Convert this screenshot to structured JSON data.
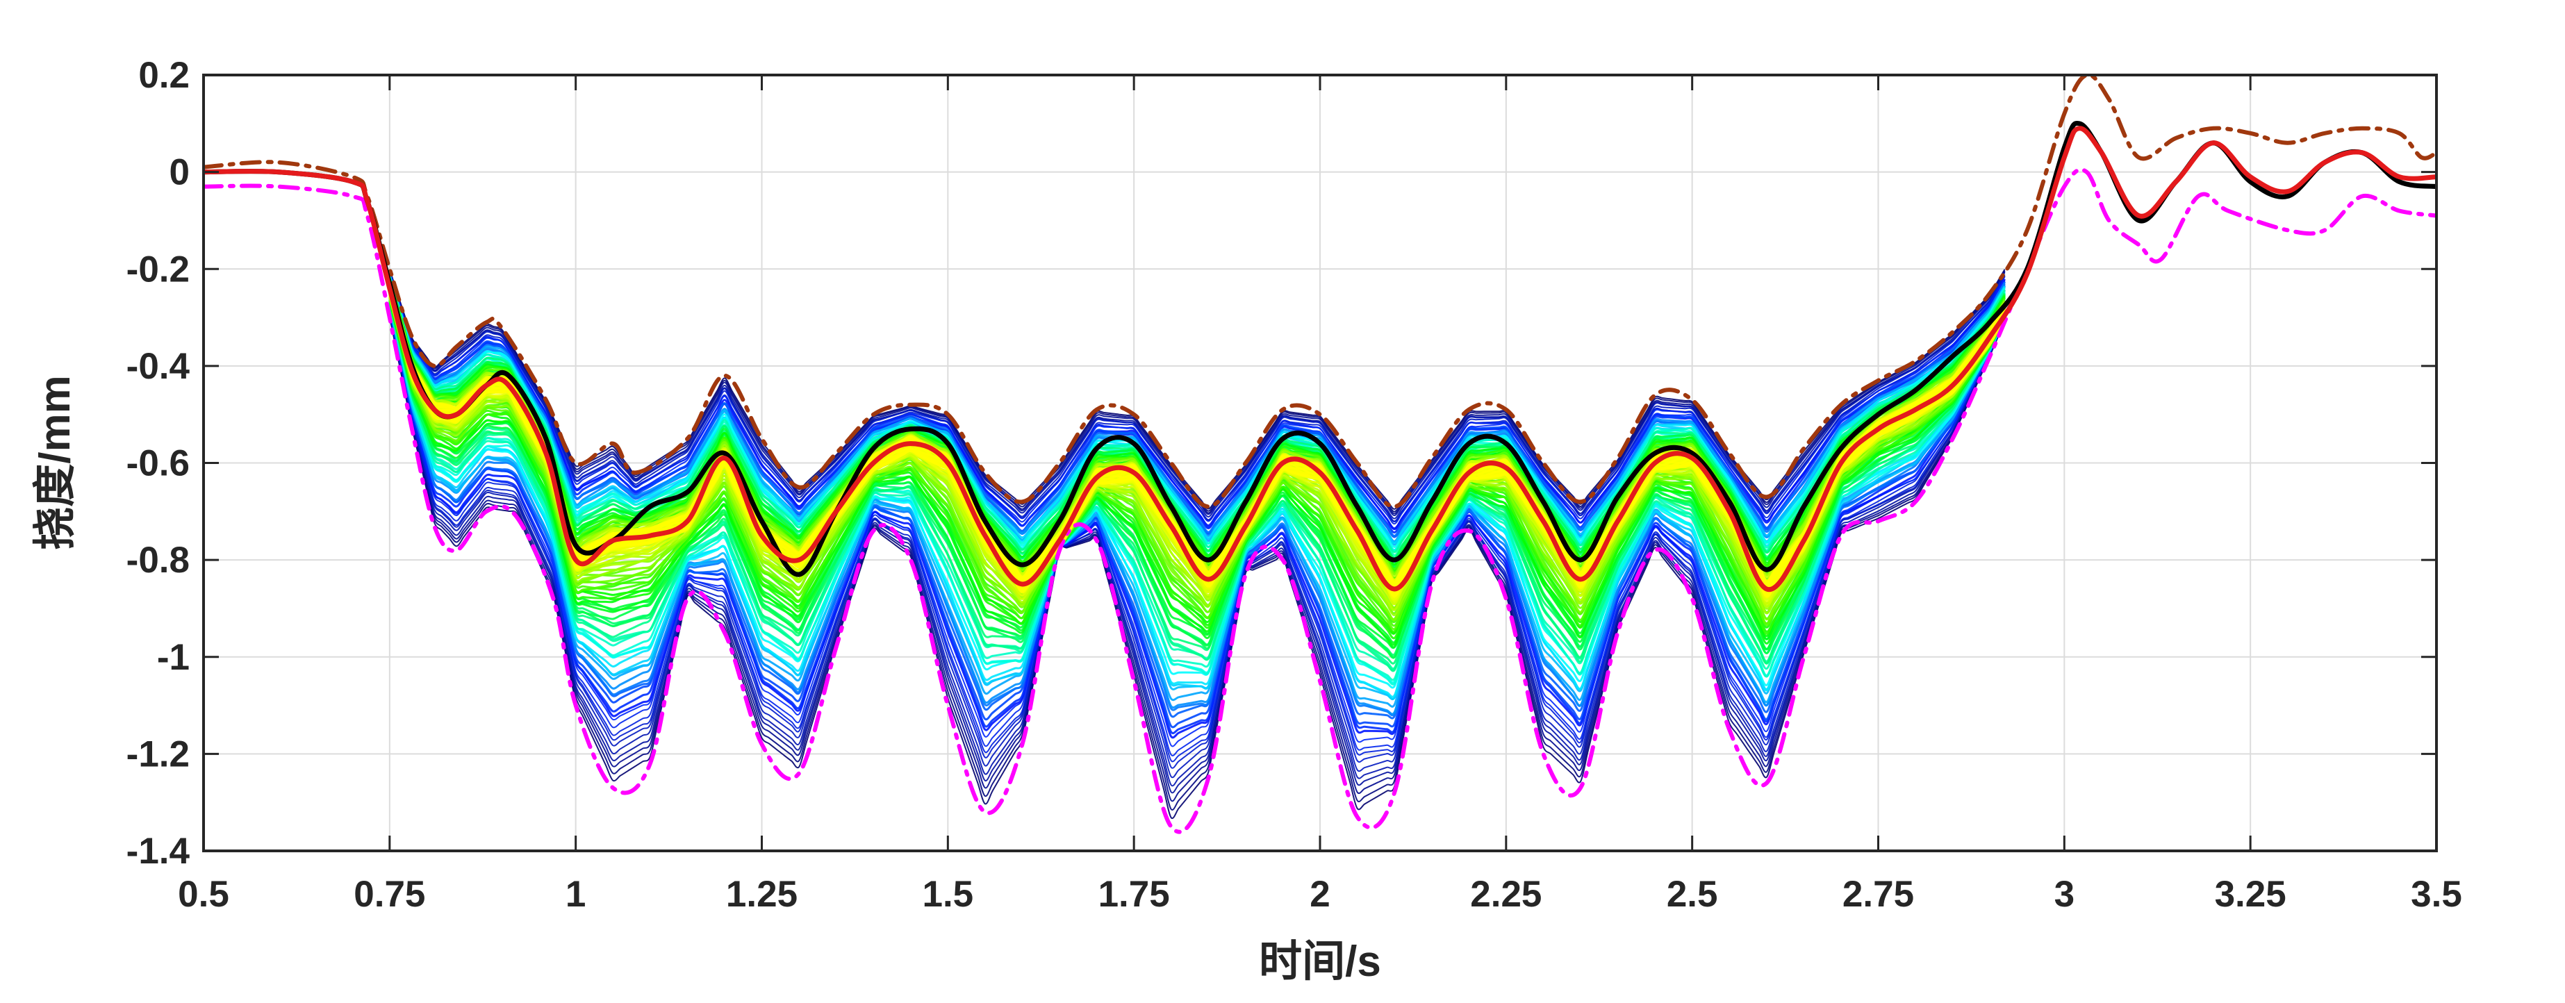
{
  "chart_data": {
    "type": "line",
    "title": "",
    "xlabel": "时间/s",
    "ylabel": "挠度/mm",
    "xlim": [
      0.5,
      3.5
    ],
    "ylim": [
      -1.4,
      0.2
    ],
    "xticks": [
      0.5,
      0.75,
      1,
      1.25,
      1.5,
      1.75,
      2,
      2.25,
      2.5,
      2.75,
      3,
      3.25,
      3.5
    ],
    "xtick_labels": [
      "0.5",
      "0.75",
      "1",
      "1.25",
      "1.5",
      "1.75",
      "2",
      "2.25",
      "2.5",
      "2.75",
      "3",
      "3.25",
      "3.5"
    ],
    "yticks": [
      -1.4,
      -1.2,
      -1,
      -0.8,
      -0.6,
      -0.4,
      -0.2,
      0,
      0.2
    ],
    "ytick_labels": [
      "-1.4",
      "-1.2",
      "-1",
      "-0.8",
      "-0.6",
      "-0.4",
      "-0.2",
      "0",
      "0.2"
    ],
    "grid": true,
    "legend": "none",
    "colors": {
      "black_series": "#000000",
      "red_series": "#e41a1c",
      "upper_envelope": "#a0380e",
      "lower_envelope": "#ff00ff",
      "band_dark": "#000080",
      "band_light": "#00ffff",
      "band_center": "#ffd700"
    },
    "ensemble": {
      "count": 150,
      "x_range": [
        0.75,
        2.92
      ]
    },
    "series": [
      {
        "style": "solid",
        "color": "#000000",
        "x": [
          0.5,
          0.6,
          0.7,
          0.72,
          0.75,
          0.78,
          0.81,
          0.84,
          0.88,
          0.91,
          0.96,
          1.0,
          1.05,
          1.1,
          1.15,
          1.2,
          1.25,
          1.3,
          1.35,
          1.4,
          1.45,
          1.5,
          1.55,
          1.6,
          1.65,
          1.7,
          1.75,
          1.8,
          1.85,
          1.9,
          1.95,
          2.0,
          2.05,
          2.1,
          2.15,
          2.2,
          2.25,
          2.3,
          2.35,
          2.4,
          2.45,
          2.5,
          2.55,
          2.6,
          2.65,
          2.7,
          2.75,
          2.8,
          2.85,
          2.9,
          2.95,
          3.0,
          3.02,
          3.05,
          3.1,
          3.15,
          3.2,
          3.25,
          3.3,
          3.35,
          3.4,
          3.45,
          3.5
        ],
        "y": [
          0.0,
          0.0,
          -0.02,
          -0.06,
          -0.23,
          -0.4,
          -0.49,
          -0.5,
          -0.44,
          -0.42,
          -0.55,
          -0.77,
          -0.76,
          -0.69,
          -0.66,
          -0.58,
          -0.72,
          -0.83,
          -0.7,
          -0.57,
          -0.53,
          -0.56,
          -0.72,
          -0.81,
          -0.72,
          -0.57,
          -0.56,
          -0.69,
          -0.8,
          -0.68,
          -0.55,
          -0.56,
          -0.69,
          -0.8,
          -0.68,
          -0.56,
          -0.56,
          -0.68,
          -0.8,
          -0.67,
          -0.58,
          -0.58,
          -0.68,
          -0.82,
          -0.69,
          -0.57,
          -0.5,
          -0.45,
          -0.38,
          -0.31,
          -0.2,
          0.05,
          0.1,
          0.04,
          -0.1,
          -0.02,
          0.06,
          -0.02,
          -0.05,
          0.02,
          0.04,
          -0.02,
          -0.03
        ]
      },
      {
        "style": "solid",
        "color": "#e41a1c",
        "x": [
          0.5,
          0.6,
          0.7,
          0.72,
          0.75,
          0.78,
          0.81,
          0.84,
          0.88,
          0.91,
          0.96,
          1.0,
          1.05,
          1.1,
          1.15,
          1.2,
          1.25,
          1.3,
          1.35,
          1.4,
          1.45,
          1.5,
          1.55,
          1.6,
          1.65,
          1.7,
          1.75,
          1.8,
          1.85,
          1.9,
          1.95,
          2.0,
          2.05,
          2.1,
          2.15,
          2.2,
          2.25,
          2.3,
          2.35,
          2.4,
          2.45,
          2.5,
          2.55,
          2.6,
          2.65,
          2.7,
          2.75,
          2.8,
          2.85,
          2.9,
          2.95,
          3.0,
          3.02,
          3.05,
          3.1,
          3.15,
          3.2,
          3.25,
          3.3,
          3.35,
          3.4,
          3.45,
          3.5
        ],
        "y": [
          0.0,
          0.0,
          -0.02,
          -0.06,
          -0.24,
          -0.41,
          -0.49,
          -0.5,
          -0.44,
          -0.44,
          -0.58,
          -0.8,
          -0.76,
          -0.75,
          -0.72,
          -0.59,
          -0.75,
          -0.8,
          -0.7,
          -0.6,
          -0.56,
          -0.6,
          -0.75,
          -0.85,
          -0.76,
          -0.63,
          -0.62,
          -0.73,
          -0.84,
          -0.73,
          -0.6,
          -0.62,
          -0.74,
          -0.86,
          -0.74,
          -0.62,
          -0.61,
          -0.72,
          -0.84,
          -0.72,
          -0.6,
          -0.59,
          -0.7,
          -0.86,
          -0.76,
          -0.6,
          -0.53,
          -0.49,
          -0.44,
          -0.34,
          -0.21,
          0.03,
          0.09,
          0.04,
          -0.09,
          -0.02,
          0.06,
          -0.01,
          -0.04,
          0.02,
          0.04,
          -0.01,
          -0.01
        ]
      },
      {
        "style": "dash-dot",
        "color": "#a0380e",
        "x": [
          0.5,
          0.6,
          0.7,
          0.72,
          0.75,
          0.78,
          0.81,
          0.84,
          0.88,
          0.9,
          0.96,
          1.0,
          1.05,
          1.08,
          1.15,
          1.2,
          1.25,
          1.3,
          1.35,
          1.4,
          1.45,
          1.5,
          1.55,
          1.6,
          1.65,
          1.7,
          1.75,
          1.8,
          1.85,
          1.9,
          1.95,
          2.0,
          2.05,
          2.1,
          2.15,
          2.2,
          2.25,
          2.3,
          2.35,
          2.4,
          2.45,
          2.5,
          2.55,
          2.6,
          2.65,
          2.7,
          2.75,
          2.8,
          2.85,
          2.9,
          2.95,
          3.0,
          3.03,
          3.06,
          3.1,
          3.15,
          3.2,
          3.25,
          3.3,
          3.35,
          3.4,
          3.45,
          3.48,
          3.5
        ],
        "y": [
          0.01,
          0.02,
          -0.01,
          -0.05,
          -0.2,
          -0.34,
          -0.4,
          -0.36,
          -0.31,
          -0.32,
          -0.47,
          -0.6,
          -0.56,
          -0.62,
          -0.55,
          -0.42,
          -0.55,
          -0.65,
          -0.58,
          -0.5,
          -0.48,
          -0.5,
          -0.62,
          -0.68,
          -0.6,
          -0.49,
          -0.5,
          -0.6,
          -0.69,
          -0.6,
          -0.49,
          -0.5,
          -0.6,
          -0.69,
          -0.59,
          -0.49,
          -0.49,
          -0.6,
          -0.68,
          -0.59,
          -0.46,
          -0.47,
          -0.58,
          -0.67,
          -0.57,
          -0.48,
          -0.43,
          -0.39,
          -0.33,
          -0.25,
          -0.12,
          0.12,
          0.2,
          0.15,
          0.03,
          0.07,
          0.09,
          0.08,
          0.06,
          0.08,
          0.09,
          0.08,
          0.03,
          0.04
        ]
      },
      {
        "style": "dash-dot",
        "color": "#ff00ff",
        "x": [
          0.5,
          0.6,
          0.7,
          0.72,
          0.75,
          0.78,
          0.81,
          0.84,
          0.88,
          0.92,
          0.97,
          1.0,
          1.05,
          1.1,
          1.15,
          1.2,
          1.25,
          1.3,
          1.35,
          1.4,
          1.45,
          1.5,
          1.55,
          1.6,
          1.65,
          1.7,
          1.75,
          1.8,
          1.85,
          1.9,
          1.95,
          2.0,
          2.05,
          2.1,
          2.15,
          2.2,
          2.25,
          2.3,
          2.35,
          2.4,
          2.45,
          2.5,
          2.55,
          2.6,
          2.65,
          2.7,
          2.75,
          2.8,
          2.85,
          2.9,
          2.95,
          3.0,
          3.03,
          3.06,
          3.1,
          3.13,
          3.18,
          3.22,
          3.3,
          3.35,
          3.4,
          3.45,
          3.5
        ],
        "y": [
          -0.03,
          -0.03,
          -0.05,
          -0.09,
          -0.3,
          -0.53,
          -0.73,
          -0.78,
          -0.7,
          -0.71,
          -0.88,
          -1.1,
          -1.27,
          -1.22,
          -0.88,
          -0.95,
          -1.18,
          -1.24,
          -0.98,
          -0.74,
          -0.8,
          -1.1,
          -1.32,
          -1.18,
          -0.78,
          -0.76,
          -1.05,
          -1.35,
          -1.25,
          -0.83,
          -0.8,
          -1.05,
          -1.33,
          -1.28,
          -0.85,
          -0.74,
          -0.88,
          -1.2,
          -1.27,
          -0.95,
          -0.78,
          -0.88,
          -1.15,
          -1.26,
          -1.0,
          -0.75,
          -0.72,
          -0.68,
          -0.55,
          -0.38,
          -0.2,
          -0.03,
          0.0,
          -0.1,
          -0.15,
          -0.18,
          -0.05,
          -0.08,
          -0.12,
          -0.12,
          -0.05,
          -0.08,
          -0.09
        ]
      }
    ]
  }
}
